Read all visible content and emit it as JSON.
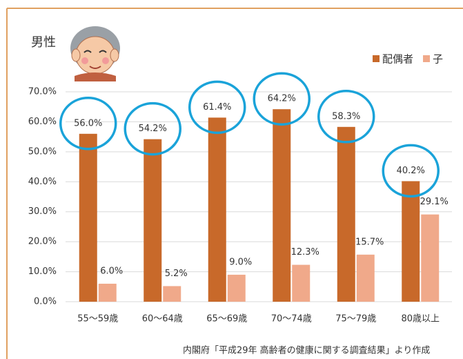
{
  "chart_data": {
    "type": "bar",
    "title": "男性",
    "categories": [
      "55〜59歳",
      "60〜64歳",
      "65〜69歳",
      "70〜74歳",
      "75〜79歳",
      "80歳以上"
    ],
    "series": [
      {
        "name": "配偶者",
        "color": "#c8692a",
        "values": [
          56.0,
          54.2,
          61.4,
          64.2,
          58.3,
          40.2
        ],
        "value_labels": [
          "56.0%",
          "54.2%",
          "61.4%",
          "64.2%",
          "58.3%",
          "40.2%"
        ]
      },
      {
        "name": "子",
        "color": "#f0a98a",
        "values": [
          6.0,
          5.2,
          9.0,
          12.3,
          15.7,
          29.1
        ],
        "value_labels": [
          "6.0%",
          "5.2%",
          "9.0%",
          "12.3%",
          "15.7%",
          "29.1%"
        ]
      }
    ],
    "ylim": [
      0,
      70
    ],
    "yticks": [
      {
        "value": 0,
        "label": "0.0%"
      },
      {
        "value": 10,
        "label": "10.0%"
      },
      {
        "value": 20,
        "label": "20.0%"
      },
      {
        "value": 30,
        "label": "30.0%"
      },
      {
        "value": 40,
        "label": "40.0%"
      },
      {
        "value": 50,
        "label": "50.0%"
      },
      {
        "value": 60,
        "label": "60.0%"
      },
      {
        "value": 70,
        "label": "70.0%"
      }
    ],
    "grid": true,
    "legend": "top-right",
    "note": "内閣府「平成29年 高齢者の健康に関する調査結果」より作成"
  }
}
